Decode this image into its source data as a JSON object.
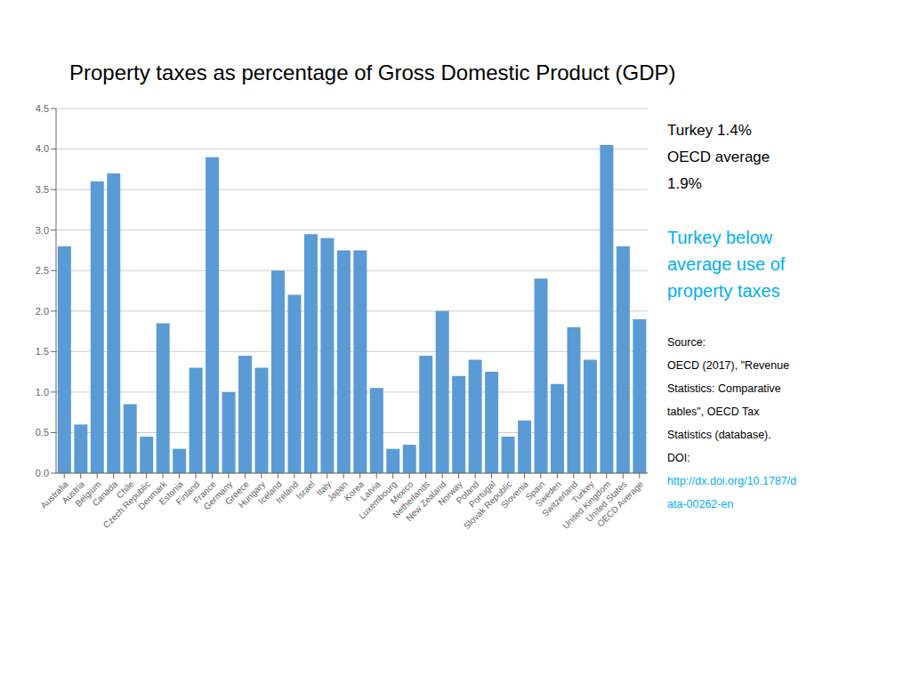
{
  "chart_data": {
    "type": "bar",
    "title": "Property taxes as percentage of Gross Domestic Product (GDP)",
    "categories": [
      "Australia",
      "Austria",
      "Belgium",
      "Canada",
      "Chile",
      "Czech Republic",
      "Denmark",
      "Estonia",
      "Finland",
      "France",
      "Germany",
      "Greece",
      "Hungary",
      "Iceland",
      "Ireland",
      "Israel",
      "Italy",
      "Japan",
      "Korea",
      "Latvia",
      "Luxembourg",
      "Mexico",
      "Netherlands",
      "New Zealand",
      "Norway",
      "Poland",
      "Portugal",
      "Slovak Republic",
      "Slovenia",
      "Spain",
      "Sweden",
      "Switzerland",
      "Turkey",
      "United Kingdom",
      "United States",
      "OECD Average"
    ],
    "values": [
      2.8,
      0.6,
      3.6,
      3.7,
      0.85,
      0.45,
      1.85,
      0.3,
      1.3,
      3.9,
      1.0,
      1.45,
      1.3,
      2.5,
      2.2,
      2.95,
      2.9,
      2.75,
      2.75,
      1.05,
      0.3,
      0.35,
      1.45,
      2.0,
      1.2,
      1.4,
      1.25,
      0.45,
      0.65,
      2.4,
      1.1,
      1.8,
      1.4,
      4.05,
      2.8,
      1.9
    ],
    "color": "#5B9BD5",
    "ylim": [
      0,
      4.5
    ],
    "yticks": [
      {
        "value": 0.0,
        "label": "0.0"
      },
      0.5,
      {
        "value": 1.0,
        "label": "1.0"
      },
      1.5,
      {
        "value": 2.0,
        "label": "2.0"
      },
      2.5,
      {
        "value": 3.0,
        "label": "3.0"
      },
      3.5,
      {
        "value": 4.0,
        "label": "4.0"
      },
      4.5
    ],
    "grid": true,
    "annotations": [
      {
        "lines": [
          "Turkey 1.4%",
          "OECD average",
          "1.9%"
        ],
        "color": "#000000"
      },
      {
        "lines": [
          "Turkey below",
          "average use of",
          "property taxes"
        ],
        "color": "#00AEEF"
      },
      {
        "lines": [
          "Source:",
          "OECD (2017), \"Revenue",
          "Statistics: Comparative",
          "tables\", OECD Tax",
          "Statistics (database).",
          "DOI:"
        ],
        "color": "#000000"
      },
      {
        "lines": [
          "http://dx.doi.org/10.1787/d",
          "ata-00262-en"
        ],
        "color": "#00AEEF"
      }
    ]
  }
}
